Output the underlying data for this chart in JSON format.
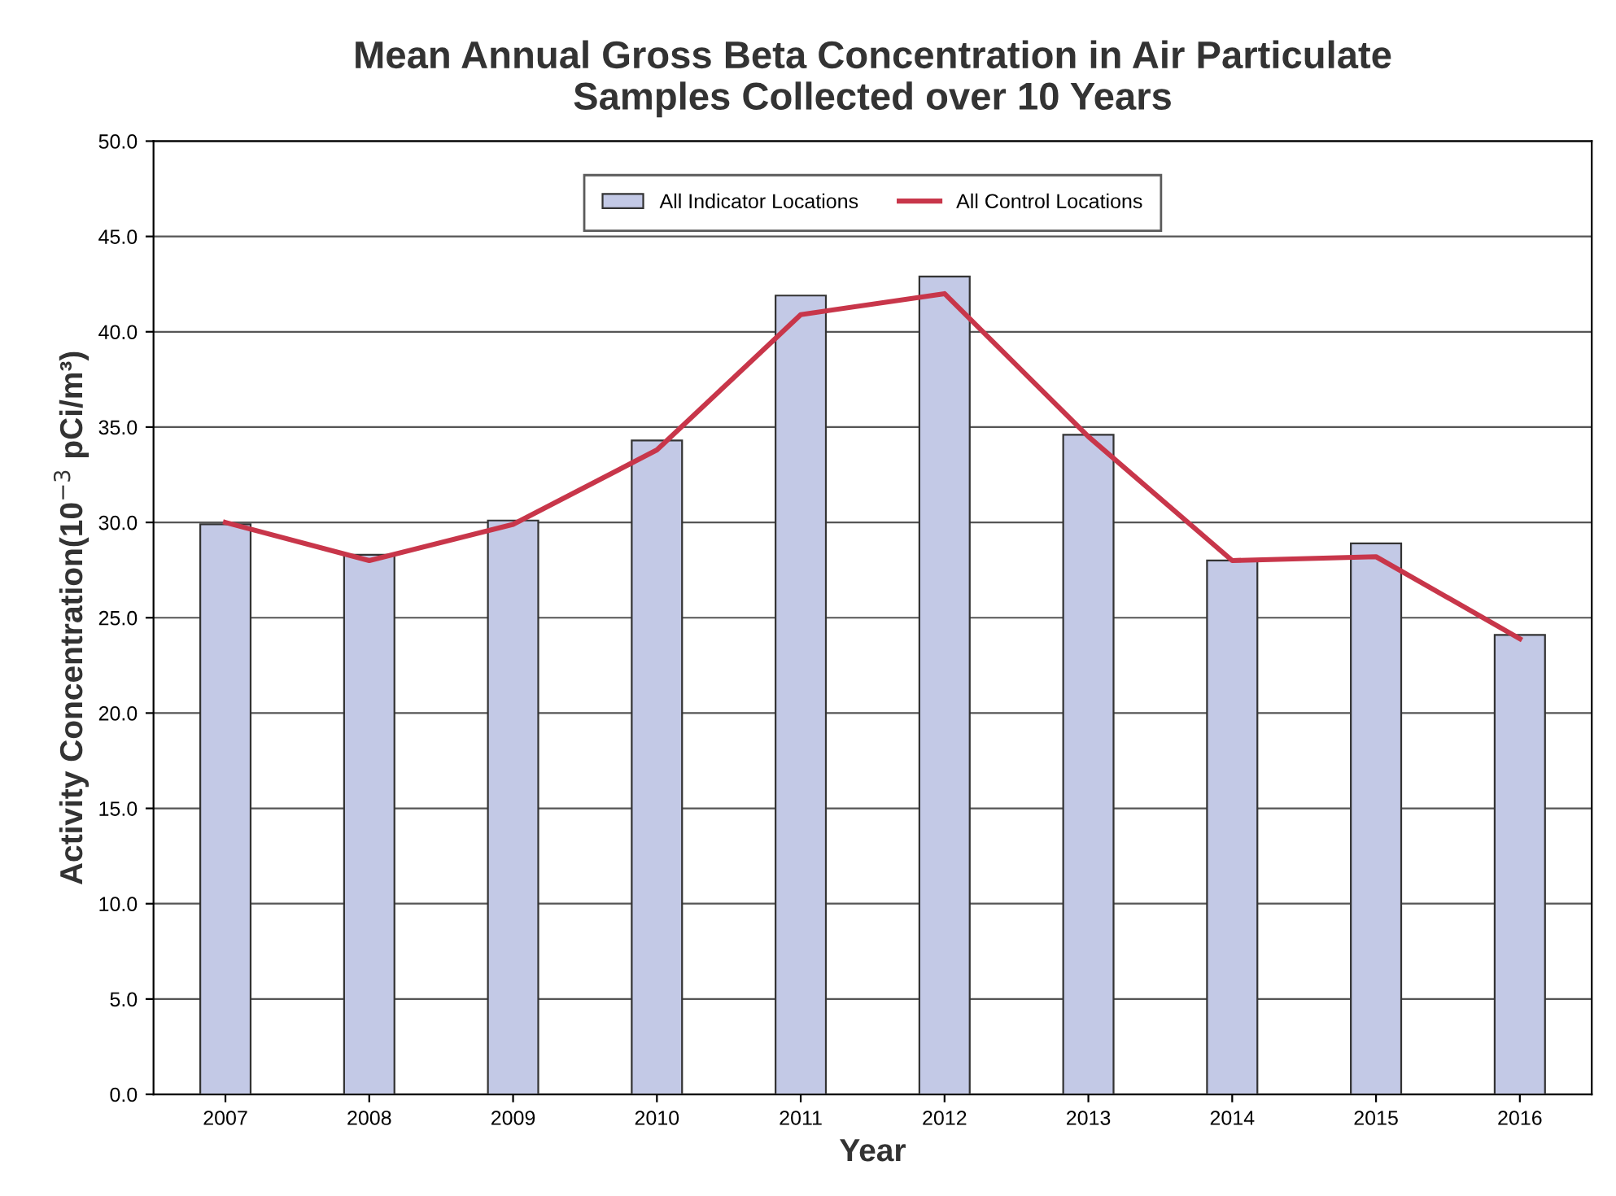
{
  "chart_data": {
    "type": "bar",
    "title": "Mean Annual Gross Beta Concentration in Air Particulate\nSamples Collected over 10 Years",
    "xlabel": "Year",
    "ylabel": "Activity Concentration(10$^{−3}$ pCi/m³)",
    "categories": [
      "2007",
      "2008",
      "2009",
      "2010",
      "2011",
      "2012",
      "2013",
      "2014",
      "2015",
      "2016"
    ],
    "series": [
      {
        "name": "All Indicator Locations",
        "color": "#c3c9e6",
        "values": [
          29.9,
          28.3,
          30.1,
          34.3,
          41.9,
          42.9,
          34.6,
          28.0,
          28.9,
          24.1
        ]
      },
      {
        "name": "All Control Locations",
        "type": "line",
        "color": "#c8364a",
        "values": [
          30.0,
          28.0,
          29.9,
          33.8,
          40.9,
          42.0,
          34.5,
          28.0,
          28.2,
          23.9
        ]
      }
    ],
    "ylim": [
      0,
      50
    ],
    "yticks": [
      {
        "value": 0,
        "label": "0.0"
      },
      {
        "value": 5,
        "label": "5.0"
      },
      {
        "value": 10,
        "label": "10.0"
      },
      {
        "value": 15,
        "label": "15.0"
      },
      {
        "value": 20,
        "label": "20.0"
      },
      {
        "value": 25,
        "label": "25.0"
      },
      {
        "value": 30,
        "label": "30.0"
      },
      {
        "value": 35,
        "label": "35.0"
      },
      {
        "value": 40,
        "label": "40.0"
      },
      {
        "value": 45,
        "label": "45.0"
      },
      {
        "value": 50,
        "label": "50.0"
      }
    ],
    "grid": "y",
    "legend": "top",
    "marker": "none",
    "line_style": "solid"
  }
}
